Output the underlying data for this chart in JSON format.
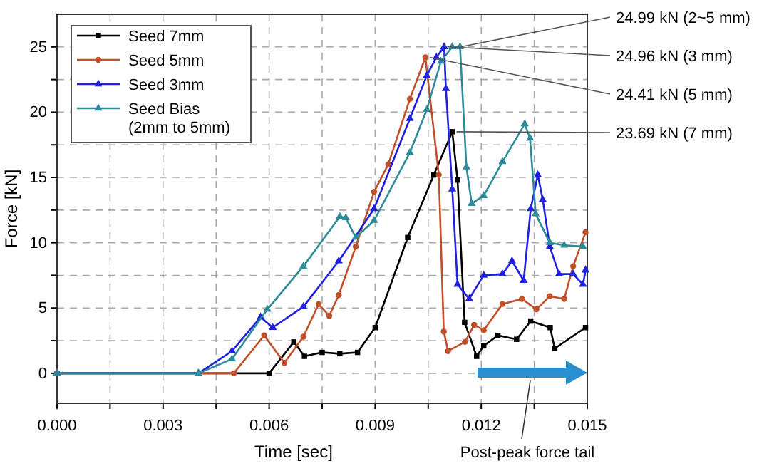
{
  "chart_data": {
    "type": "line",
    "xlabel": "Time [sec]",
    "ylabel": "Force [kN]",
    "xlim": [
      0,
      0.015
    ],
    "ylim": [
      -2.3,
      27.5
    ],
    "xticks": [
      {
        "value": 0,
        "label": "0.000"
      },
      {
        "value": 0.0015,
        "label": null
      },
      {
        "value": 0.003,
        "label": "0.003"
      },
      {
        "value": 0.0045,
        "label": null
      },
      {
        "value": 0.006,
        "label": "0.006"
      },
      {
        "value": 0.0075,
        "label": null
      },
      {
        "value": 0.009,
        "label": "0.009"
      },
      {
        "value": 0.0105,
        "label": null
      },
      {
        "value": 0.012,
        "label": "0.012"
      },
      {
        "value": 0.0135,
        "label": null
      },
      {
        "value": 0.015,
        "label": "0.015"
      }
    ],
    "yticks": [
      0,
      {
        "value": 2.5,
        "label": null
      },
      5,
      {
        "value": 7.5,
        "label": null
      },
      10,
      {
        "value": 12.5,
        "label": null
      },
      15,
      {
        "value": 17.5,
        "label": null
      },
      20,
      {
        "value": 22.5,
        "label": null
      },
      25
    ],
    "grid": true,
    "legend": "top left",
    "line_style": "solid",
    "series": [
      {
        "name": "Seed 7mm",
        "color": "#000000",
        "marker": "square",
        "x": [
          0,
          0.006,
          0.0067,
          0.007,
          0.0075,
          0.008,
          0.0085,
          0.009,
          0.00992,
          0.01066,
          0.01118,
          0.01133,
          0.01153,
          0.01187,
          0.01207,
          0.01247,
          0.013,
          0.0134,
          0.01395,
          0.01408,
          0.01495
        ],
        "values": [
          0,
          0,
          2.4,
          1.3,
          1.6,
          1.5,
          1.6,
          3.5,
          10.4,
          15.2,
          18.5,
          14.8,
          3.9,
          1.3,
          2.1,
          2.9,
          2.6,
          4.0,
          3.5,
          1.9,
          3.5
        ]
      },
      {
        "name": "Seed 5mm",
        "color": "#c0502a",
        "marker": "circle",
        "x": [
          0,
          0.005,
          0.00586,
          0.00643,
          0.00697,
          0.0074,
          0.0077,
          0.00797,
          0.00845,
          0.00897,
          0.00937,
          0.00998,
          0.01042,
          0.0108,
          0.01094,
          0.01106,
          0.01154,
          0.0118,
          0.01207,
          0.0126,
          0.01315,
          0.01356,
          0.01394,
          0.01435,
          0.0146,
          0.01495
        ],
        "values": [
          0,
          0,
          2.9,
          0.8,
          2.8,
          5.3,
          4.4,
          6.0,
          9.7,
          13.9,
          16.0,
          21.0,
          24.2,
          15.2,
          3.2,
          1.7,
          2.4,
          3.7,
          3.3,
          5.3,
          5.7,
          4.9,
          5.9,
          5.7,
          8.2,
          10.8
        ]
      },
      {
        "name": "Seed 3mm",
        "color": "#2020e0",
        "marker": "triangle",
        "x": [
          0,
          0.004,
          0.00495,
          0.00576,
          0.0061,
          0.00697,
          0.00797,
          0.00897,
          0.00998,
          0.01046,
          0.01073,
          0.01095,
          0.011,
          0.01118,
          0.01133,
          0.01166,
          0.01207,
          0.0126,
          0.01287,
          0.0132,
          0.0134,
          0.0136,
          0.01374,
          0.01394,
          0.0142,
          0.0146,
          0.01488,
          0.01495
        ],
        "values": [
          0,
          0,
          1.7,
          4.3,
          3.5,
          5.1,
          8.6,
          12.6,
          19.5,
          22.8,
          24.2,
          25.0,
          21.8,
          14.1,
          6.8,
          5.7,
          7.5,
          7.6,
          8.6,
          7.1,
          12.6,
          15.2,
          13.3,
          9.7,
          7.6,
          7.6,
          6.8,
          7.9
        ]
      },
      {
        "name": "Seed Bias\n(2mm to 5mm)",
        "color": "#2e8b9a",
        "marker": "triangle",
        "x": [
          0,
          0.004,
          0.00495,
          0.00595,
          0.00697,
          0.008,
          0.00817,
          0.00845,
          0.00897,
          0.00998,
          0.01046,
          0.01086,
          0.01118,
          0.0114,
          0.01158,
          0.01173,
          0.01207,
          0.0126,
          0.01323,
          0.01338,
          0.01354,
          0.01394,
          0.01435,
          0.01488
        ],
        "values": [
          0,
          0,
          1.1,
          4.9,
          8.2,
          12.0,
          11.9,
          10.4,
          11.7,
          16.9,
          20.2,
          23.9,
          25.0,
          25.0,
          15.8,
          13.0,
          13.6,
          16.2,
          19.1,
          18.0,
          12.2,
          10.0,
          9.8,
          9.7
        ]
      }
    ],
    "annotations": [
      {
        "text": "24.99 kN (2~5 mm)",
        "x": 0.0113,
        "y": 25.0
      },
      {
        "text": "24.96 kN (3 mm)",
        "x": 0.01095,
        "y": 25.0
      },
      {
        "text": "24.41 kN (5 mm)",
        "x": 0.01042,
        "y": 24.2
      },
      {
        "text": "23.69 kN (7 mm)",
        "x": 0.01118,
        "y": 18.5
      },
      "Post-peak  force tail"
    ]
  }
}
